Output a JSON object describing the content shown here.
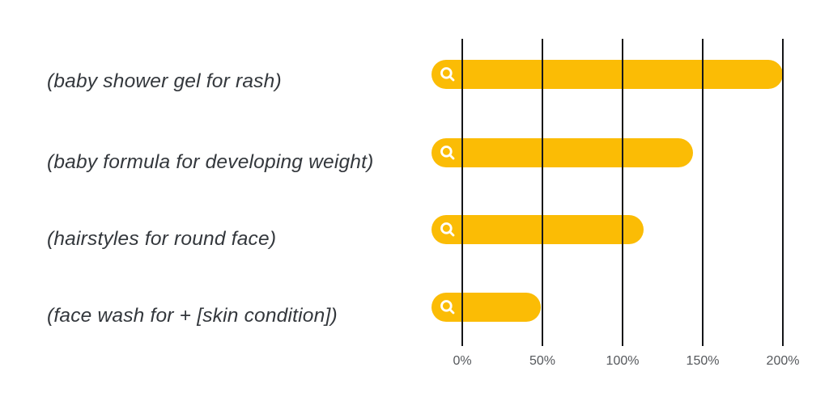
{
  "chart_data": {
    "type": "bar",
    "orientation": "horizontal",
    "title": "",
    "xlabel": "",
    "ylabel": "",
    "categories": [
      "(baby shower gel for rash)",
      "(baby formula for developing weight)",
      "(hairstyles for round face)",
      "(face wash for + [skin condition])"
    ],
    "values": [
      200,
      144,
      113,
      49
    ],
    "unit": "%",
    "x_ticks": [
      "0%",
      "50%",
      "100%",
      "150%",
      "200%"
    ],
    "x_tick_values": [
      0,
      50,
      100,
      150,
      200
    ],
    "xlim": [
      0,
      200
    ],
    "grid": true,
    "gridline_style": "vertical-solid-black-over-bars",
    "legend_position": "none",
    "bar_color": "#FBBC05",
    "gridline_color": "#141518",
    "label_color": "#33373c",
    "tick_label_color": "#55585c",
    "bar_icon": "search-icon",
    "bar_icon_color": "#ffffff"
  }
}
